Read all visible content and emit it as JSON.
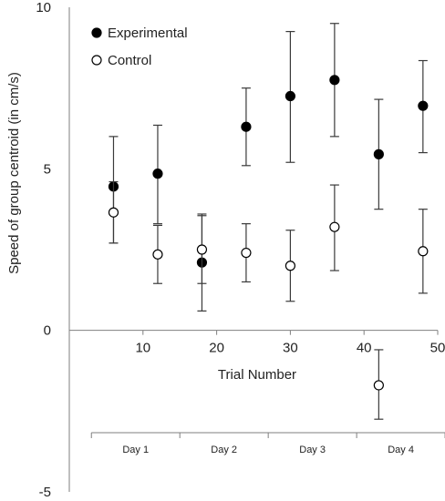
{
  "chart_data": {
    "type": "scatter",
    "xlabel": "Trial Number",
    "ylabel": "Speed of group centroid (in cm/s)",
    "xlim": [
      0,
      50
    ],
    "ylim": [
      -5,
      10
    ],
    "x_ticks": [
      10,
      20,
      30,
      40,
      50
    ],
    "y_ticks": [
      -5,
      0,
      5,
      10
    ],
    "grid": false,
    "legend_position": "top-left",
    "error_bars": true,
    "series": [
      {
        "name": "Experimental",
        "marker": "filled-circle",
        "color": "#000000",
        "x": [
          6,
          12,
          18,
          24,
          30,
          36,
          42,
          48
        ],
        "y": [
          4.45,
          4.85,
          2.1,
          6.3,
          7.25,
          7.75,
          5.45,
          6.95
        ],
        "err_low": [
          1.75,
          1.55,
          1.5,
          1.2,
          2.05,
          1.75,
          1.7,
          1.45
        ],
        "err_high": [
          1.55,
          1.5,
          1.5,
          1.2,
          2.0,
          1.75,
          1.7,
          1.4
        ]
      },
      {
        "name": "Control",
        "marker": "open-circle",
        "color": "#000000",
        "x": [
          6,
          12,
          18,
          24,
          30,
          36,
          42,
          48
        ],
        "y": [
          3.65,
          2.35,
          2.5,
          2.4,
          2.0,
          3.2,
          -1.7,
          2.45
        ],
        "err_low": [
          0.95,
          0.9,
          1.05,
          0.9,
          1.1,
          1.35,
          1.05,
          1.3
        ],
        "err_high": [
          0.95,
          0.9,
          1.05,
          0.9,
          1.1,
          1.3,
          1.1,
          1.3
        ]
      }
    ],
    "day_groups": {
      "labels": [
        "Day 1",
        "Day 2",
        "Day 3",
        "Day 4"
      ],
      "boundaries": [
        3,
        15,
        27,
        39,
        51
      ]
    }
  }
}
